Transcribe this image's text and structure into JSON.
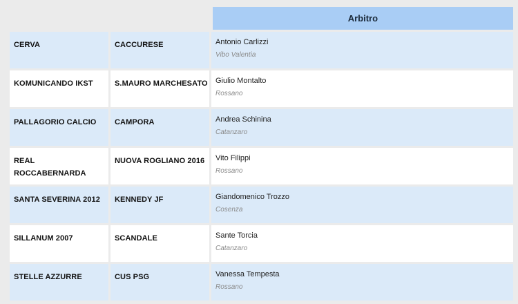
{
  "header": {
    "referee_label": "Arbitro"
  },
  "matches": [
    {
      "home": "CERVA",
      "away": "CACCURESE",
      "referee": "Antonio Carlizzi",
      "city": "Vibo Valentia"
    },
    {
      "home": "KOMUNICANDO IKST",
      "away": "S.MAURO MARCHESATO",
      "referee": "Giulio Montalto",
      "city": "Rossano"
    },
    {
      "home": "PALLAGORIO CALCIO",
      "away": "CAMPORA",
      "referee": "Andrea Schinina",
      "city": "Catanzaro"
    },
    {
      "home": "REAL ROCCABERNARDA",
      "away": "NUOVA ROGLIANO 2016",
      "referee": "Vito Filippi",
      "city": "Rossano"
    },
    {
      "home": "SANTA SEVERINA 2012",
      "away": "KENNEDY JF",
      "referee": "Giandomenico Trozzo",
      "city": "Cosenza"
    },
    {
      "home": "SILLANUM 2007",
      "away": "SCANDALE",
      "referee": "Sante Torcia",
      "city": "Catanzaro"
    },
    {
      "home": "STELLE AZZURRE",
      "away": "CUS PSG",
      "referee": "Vanessa Tempesta",
      "city": "Rossano"
    }
  ]
}
